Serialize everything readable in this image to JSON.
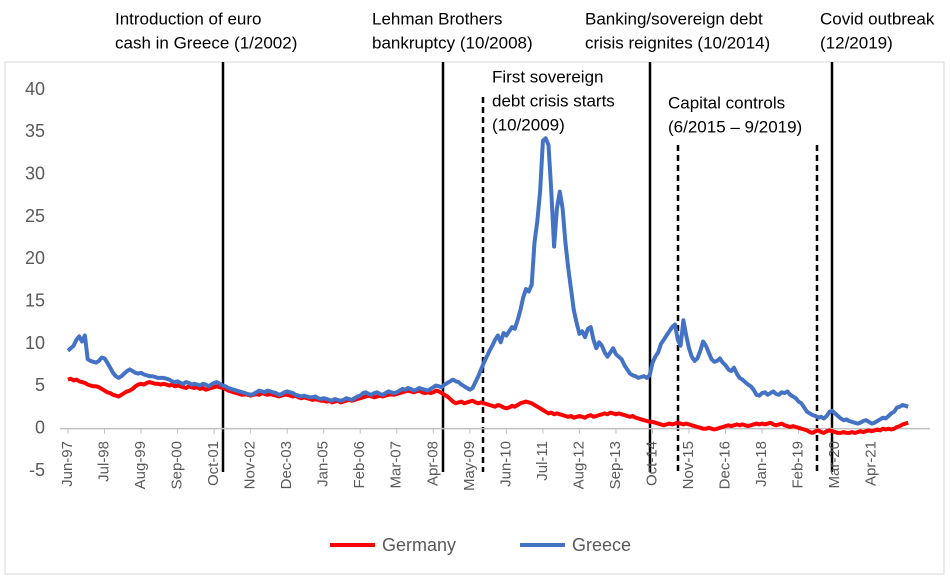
{
  "chart_data": {
    "type": "line",
    "annotations": [
      {
        "lines": [
          "Introduction of euro",
          "cash in Greece (1/2002)"
        ]
      },
      {
        "lines": [
          "Lehman Brothers",
          "bankruptcy (10/2008)"
        ]
      },
      {
        "lines": [
          "Banking/sovereign debt",
          "crisis reignites (10/2014)"
        ]
      },
      {
        "lines": [
          "Covid outbreak",
          "(12/2019)"
        ]
      },
      {
        "lines": [
          "First sovereign",
          "debt crisis starts",
          "(10/2009)"
        ]
      },
      {
        "lines": [
          "Capital controls",
          "(6/2015 – 9/2019)"
        ]
      }
    ],
    "categories": [
      "Jun-97",
      null,
      null,
      null,
      null,
      null,
      null,
      null,
      null,
      null,
      null,
      null,
      null,
      "Jul-98",
      null,
      null,
      null,
      null,
      null,
      null,
      null,
      null,
      null,
      null,
      null,
      null,
      "Aug-99",
      null,
      null,
      null,
      null,
      null,
      null,
      null,
      null,
      null,
      null,
      null,
      null,
      "Sep-00",
      null,
      null,
      null,
      null,
      null,
      null,
      null,
      null,
      null,
      null,
      null,
      null,
      "Oct-01",
      null,
      null,
      null,
      null,
      null,
      null,
      null,
      null,
      null,
      null,
      null,
      null,
      "Nov-02",
      null,
      null,
      null,
      null,
      null,
      null,
      null,
      null,
      null,
      null,
      null,
      null,
      "Dec-03",
      null,
      null,
      null,
      null,
      null,
      null,
      null,
      null,
      null,
      null,
      null,
      null,
      "Jan-05",
      null,
      null,
      null,
      null,
      null,
      null,
      null,
      null,
      null,
      null,
      null,
      null,
      "Feb-06",
      null,
      null,
      null,
      null,
      null,
      null,
      null,
      null,
      null,
      null,
      null,
      null,
      "Mar-07",
      null,
      null,
      null,
      null,
      null,
      null,
      null,
      null,
      null,
      null,
      null,
      null,
      "Apr-08",
      null,
      null,
      null,
      null,
      null,
      null,
      null,
      null,
      null,
      null,
      null,
      null,
      "May-09",
      null,
      null,
      null,
      null,
      null,
      null,
      null,
      null,
      null,
      null,
      null,
      null,
      "Jun-10",
      null,
      null,
      null,
      null,
      null,
      null,
      null,
      null,
      null,
      null,
      null,
      null,
      "Jul-11",
      null,
      null,
      null,
      null,
      null,
      null,
      null,
      null,
      null,
      null,
      null,
      null,
      "Aug-12",
      null,
      null,
      null,
      null,
      null,
      null,
      null,
      null,
      null,
      null,
      null,
      null,
      "Sep-13",
      null,
      null,
      null,
      null,
      null,
      null,
      null,
      null,
      null,
      null,
      null,
      null,
      "Oct-14",
      null,
      null,
      null,
      null,
      null,
      null,
      null,
      null,
      null,
      null,
      null,
      null,
      "Nov-15",
      null,
      null,
      null,
      null,
      null,
      null,
      null,
      null,
      null,
      null,
      null,
      null,
      "Dec-16",
      null,
      null,
      null,
      null,
      null,
      null,
      null,
      null,
      null,
      null,
      null,
      null,
      "Jan-18",
      null,
      null,
      null,
      null,
      null,
      null,
      null,
      null,
      null,
      null,
      null,
      null,
      "Feb-19",
      null,
      null,
      null,
      null,
      null,
      null,
      null,
      null,
      null,
      null,
      null,
      null,
      "Mar-20",
      null,
      null,
      null,
      null,
      null,
      null,
      null,
      null,
      null,
      null,
      null,
      null,
      "Apr-21",
      null,
      null,
      null,
      null,
      null,
      null,
      null,
      null,
      null,
      null,
      null,
      null,
      null
    ],
    "series": [
      {
        "name": "Germany",
        "color": "#ff0000",
        "values": [
          5.8,
          5.9,
          5.7,
          5.8,
          5.6,
          5.5,
          5.4,
          5.2,
          5.1,
          5.0,
          5.0,
          4.9,
          4.7,
          4.5,
          4.3,
          4.2,
          4.0,
          3.9,
          3.8,
          4.0,
          4.2,
          4.4,
          4.5,
          4.7,
          5.0,
          5.2,
          5.3,
          5.2,
          5.4,
          5.5,
          5.4,
          5.3,
          5.3,
          5.2,
          5.3,
          5.2,
          5.1,
          5.2,
          5.0,
          5.1,
          5.0,
          4.9,
          4.8,
          5.0,
          4.9,
          4.8,
          4.9,
          4.7,
          4.8,
          4.6,
          4.7,
          4.8,
          4.9,
          5.0,
          4.9,
          4.8,
          4.7,
          4.5,
          4.4,
          4.3,
          4.2,
          4.1,
          4.0,
          4.1,
          4.0,
          3.9,
          4.0,
          4.1,
          4.0,
          4.2,
          4.1,
          4.0,
          4.1,
          4.0,
          3.9,
          3.8,
          3.9,
          4.0,
          4.0,
          3.9,
          3.8,
          3.9,
          3.7,
          3.6,
          3.7,
          3.6,
          3.5,
          3.4,
          3.5,
          3.4,
          3.3,
          3.3,
          3.2,
          3.3,
          3.1,
          3.2,
          3.3,
          3.1,
          3.2,
          3.3,
          3.4,
          3.3,
          3.4,
          3.5,
          3.6,
          3.7,
          3.8,
          3.9,
          3.8,
          3.7,
          3.8,
          3.9,
          3.8,
          3.9,
          4.0,
          4.1,
          4.0,
          4.1,
          4.2,
          4.3,
          4.4,
          4.5,
          4.4,
          4.3,
          4.4,
          4.5,
          4.3,
          4.2,
          4.3,
          4.2,
          4.3,
          4.5,
          4.4,
          4.2,
          4.0,
          3.8,
          3.5,
          3.2,
          3.0,
          3.1,
          3.2,
          3.0,
          3.1,
          3.2,
          3.3,
          3.1,
          3.0,
          3.1,
          3.0,
          2.9,
          2.8,
          2.7,
          2.6,
          2.8,
          2.7,
          2.5,
          2.4,
          2.5,
          2.7,
          2.6,
          2.8,
          3.0,
          3.1,
          3.2,
          3.1,
          3.0,
          2.8,
          2.6,
          2.4,
          2.2,
          2.0,
          1.8,
          1.9,
          1.7,
          1.8,
          1.7,
          1.6,
          1.5,
          1.4,
          1.5,
          1.3,
          1.4,
          1.5,
          1.4,
          1.3,
          1.5,
          1.6,
          1.4,
          1.5,
          1.6,
          1.7,
          1.8,
          1.7,
          1.9,
          1.8,
          1.7,
          1.8,
          1.7,
          1.6,
          1.5,
          1.4,
          1.5,
          1.3,
          1.2,
          1.1,
          1.0,
          0.9,
          0.8,
          0.8,
          0.7,
          0.6,
          0.5,
          0.4,
          0.5,
          0.6,
          0.5,
          0.6,
          0.7,
          0.6,
          0.5,
          0.6,
          0.5,
          0.4,
          0.3,
          0.2,
          0.1,
          0.0,
          0.0,
          0.1,
          0.0,
          -0.1,
          0.0,
          0.1,
          0.2,
          0.3,
          0.4,
          0.3,
          0.4,
          0.5,
          0.4,
          0.5,
          0.4,
          0.3,
          0.4,
          0.5,
          0.6,
          0.5,
          0.6,
          0.5,
          0.6,
          0.7,
          0.5,
          0.4,
          0.5,
          0.6,
          0.4,
          0.3,
          0.2,
          0.3,
          0.2,
          0.1,
          0.0,
          -0.1,
          -0.2,
          -0.4,
          -0.5,
          -0.3,
          -0.2,
          -0.4,
          -0.5,
          -0.3,
          -0.2,
          -0.3,
          -0.4,
          -0.5,
          -0.5,
          -0.4,
          -0.5,
          -0.5,
          -0.4,
          -0.5,
          -0.4,
          -0.3,
          -0.4,
          -0.3,
          -0.2,
          -0.3,
          -0.2,
          -0.1,
          -0.2,
          0.0,
          -0.1,
          0.0,
          -0.1,
          0.0,
          0.2,
          0.3,
          0.5,
          0.6,
          0.7
        ]
      },
      {
        "name": "Greece",
        "color": "#4472c4",
        "values": [
          9.2,
          9.5,
          9.8,
          10.5,
          10.9,
          10.3,
          11.0,
          8.2,
          8.0,
          7.9,
          7.8,
          8.0,
          8.4,
          8.3,
          7.8,
          7.2,
          6.6,
          6.2,
          6.0,
          6.2,
          6.5,
          6.8,
          7.0,
          6.8,
          6.6,
          6.5,
          6.6,
          6.4,
          6.3,
          6.2,
          6.2,
          6.1,
          6.0,
          6.0,
          6.0,
          5.9,
          5.8,
          5.6,
          5.5,
          5.6,
          5.4,
          5.3,
          5.5,
          5.4,
          5.2,
          5.3,
          5.2,
          5.1,
          5.3,
          5.2,
          5.0,
          5.2,
          5.4,
          5.5,
          5.3,
          5.1,
          5.0,
          4.8,
          4.7,
          4.6,
          4.5,
          4.4,
          4.3,
          4.2,
          4.1,
          4.0,
          4.1,
          4.3,
          4.5,
          4.4,
          4.3,
          4.5,
          4.4,
          4.3,
          4.2,
          4.0,
          4.1,
          4.3,
          4.4,
          4.3,
          4.2,
          4.0,
          3.9,
          3.8,
          3.9,
          3.8,
          3.7,
          3.7,
          3.8,
          3.6,
          3.5,
          3.6,
          3.5,
          3.4,
          3.3,
          3.5,
          3.4,
          3.3,
          3.4,
          3.6,
          3.5,
          3.4,
          3.6,
          3.8,
          3.9,
          4.2,
          4.3,
          4.1,
          4.0,
          4.2,
          4.3,
          4.1,
          4.0,
          4.2,
          4.4,
          4.3,
          4.2,
          4.3,
          4.5,
          4.7,
          4.6,
          4.8,
          4.7,
          4.5,
          4.6,
          4.8,
          4.7,
          4.6,
          4.5,
          4.7,
          4.9,
          5.1,
          5.0,
          4.9,
          5.2,
          5.4,
          5.6,
          5.8,
          5.6,
          5.5,
          5.2,
          5.0,
          4.8,
          4.6,
          4.8,
          5.5,
          6.2,
          7.0,
          7.8,
          8.5,
          9.2,
          9.8,
          10.5,
          11.0,
          10.2,
          11.3,
          11.0,
          11.5,
          12.0,
          11.8,
          12.8,
          14.0,
          15.5,
          16.5,
          16.2,
          17.0,
          22.0,
          24.5,
          28.0,
          34.0,
          34.3,
          33.5,
          28.0,
          21.5,
          26.0,
          28.0,
          26.0,
          22.0,
          19.0,
          16.5,
          14.0,
          12.5,
          11.2,
          11.5,
          10.8,
          11.8,
          12.0,
          10.5,
          9.5,
          10.2,
          9.8,
          9.0,
          8.5,
          9.0,
          9.5,
          8.8,
          8.5,
          8.2,
          7.5,
          7.0,
          6.5,
          6.3,
          6.2,
          6.0,
          6.1,
          6.2,
          6.0,
          6.3,
          7.8,
          8.5,
          9.0,
          10.0,
          10.5,
          11.0,
          11.5,
          12.0,
          12.3,
          10.5,
          9.8,
          12.8,
          11.0,
          9.5,
          8.5,
          8.0,
          8.3,
          9.2,
          10.3,
          9.8,
          9.0,
          8.2,
          7.9,
          8.0,
          8.3,
          7.8,
          7.5,
          7.0,
          6.8,
          7.2,
          6.5,
          6.0,
          5.8,
          5.5,
          5.2,
          5.0,
          4.6,
          4.0,
          3.9,
          4.2,
          4.3,
          4.0,
          4.2,
          4.4,
          4.1,
          4.0,
          4.3,
          4.2,
          4.4,
          4.0,
          3.8,
          3.6,
          3.2,
          3.0,
          2.5,
          2.0,
          1.8,
          1.6,
          1.5,
          1.3,
          1.4,
          1.2,
          1.5,
          2.0,
          2.1,
          1.8,
          1.5,
          1.2,
          1.0,
          1.1,
          0.9,
          0.8,
          0.7,
          0.6,
          0.7,
          0.9,
          1.0,
          0.8,
          0.6,
          0.7,
          0.9,
          1.1,
          1.3,
          1.2,
          1.5,
          1.8,
          2.0,
          2.5,
          2.6,
          2.8,
          2.7,
          2.6
        ]
      }
    ],
    "ylim": [
      -5,
      40
    ],
    "yticks": [
      -5,
      0,
      5,
      10,
      15,
      20,
      25,
      30,
      35,
      40
    ],
    "grid": false,
    "legend": "bottom"
  }
}
